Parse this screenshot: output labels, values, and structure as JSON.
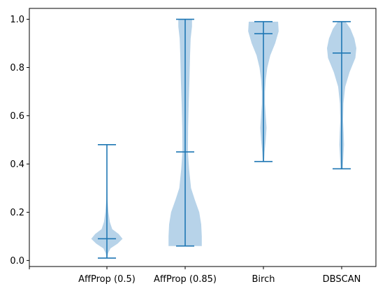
{
  "chart_data": {
    "type": "violin",
    "categories": [
      "",
      "AffProp (0.5)",
      "AffProp (0.85)",
      "Birch",
      "DBSCAN"
    ],
    "ylim": [
      -0.025,
      1.045
    ],
    "yticks": [
      0.0,
      0.2,
      0.4,
      0.6,
      0.8,
      1.0
    ],
    "ytick_labels": [
      "0.0",
      "0.2",
      "0.4",
      "0.6",
      "0.8",
      "1.0"
    ],
    "grid": false,
    "colors": {
      "body": "#b7d3e9",
      "line": "#1f77b4"
    },
    "series": [
      {
        "category": "AffProp (0.5)",
        "min": 0.01,
        "median": 0.09,
        "max": 0.48,
        "profile": [
          [
            0.01,
            0.02
          ],
          [
            0.03,
            0.06
          ],
          [
            0.05,
            0.18
          ],
          [
            0.07,
            0.55
          ],
          [
            0.09,
            0.8
          ],
          [
            0.11,
            0.6
          ],
          [
            0.13,
            0.27
          ],
          [
            0.16,
            0.15
          ],
          [
            0.2,
            0.08
          ],
          [
            0.25,
            0.03
          ],
          [
            0.3,
            0.02
          ],
          [
            0.4,
            0.01
          ],
          [
            0.48,
            0.0
          ]
        ]
      },
      {
        "category": "AffProp (0.85)",
        "min": 0.06,
        "median": 0.45,
        "max": 1.0,
        "profile": [
          [
            0.06,
            0.85
          ],
          [
            0.1,
            0.85
          ],
          [
            0.15,
            0.82
          ],
          [
            0.2,
            0.72
          ],
          [
            0.25,
            0.5
          ],
          [
            0.3,
            0.3
          ],
          [
            0.38,
            0.2
          ],
          [
            0.45,
            0.14
          ],
          [
            0.55,
            0.15
          ],
          [
            0.65,
            0.18
          ],
          [
            0.75,
            0.22
          ],
          [
            0.85,
            0.25
          ],
          [
            0.92,
            0.28
          ],
          [
            0.97,
            0.35
          ],
          [
            1.0,
            0.35
          ]
        ]
      },
      {
        "category": "Birch",
        "min": 0.41,
        "median": 0.94,
        "max": 0.99,
        "profile": [
          [
            0.41,
            0.03
          ],
          [
            0.45,
            0.06
          ],
          [
            0.5,
            0.12
          ],
          [
            0.55,
            0.16
          ],
          [
            0.6,
            0.12
          ],
          [
            0.65,
            0.08
          ],
          [
            0.7,
            0.08
          ],
          [
            0.75,
            0.12
          ],
          [
            0.8,
            0.2
          ],
          [
            0.85,
            0.35
          ],
          [
            0.9,
            0.6
          ],
          [
            0.95,
            0.78
          ],
          [
            0.99,
            0.75
          ]
        ]
      },
      {
        "category": "DBSCAN",
        "min": 0.38,
        "median": 0.86,
        "max": 0.99,
        "profile": [
          [
            0.38,
            0.05
          ],
          [
            0.42,
            0.08
          ],
          [
            0.48,
            0.12
          ],
          [
            0.53,
            0.1
          ],
          [
            0.58,
            0.07
          ],
          [
            0.65,
            0.09
          ],
          [
            0.72,
            0.18
          ],
          [
            0.78,
            0.4
          ],
          [
            0.84,
            0.7
          ],
          [
            0.88,
            0.75
          ],
          [
            0.92,
            0.65
          ],
          [
            0.96,
            0.45
          ],
          [
            0.99,
            0.2
          ]
        ]
      }
    ]
  }
}
